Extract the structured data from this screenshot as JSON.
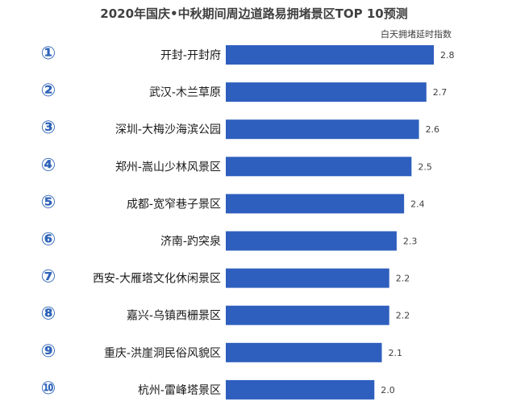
{
  "chart_data": {
    "type": "bar",
    "orientation": "horizontal",
    "title": "2020年国庆•中秋期间周边道路易拥堵景区TOP 10预测",
    "subtitle": "白天拥堵延时指数",
    "ranks": [
      "①",
      "②",
      "③",
      "④",
      "⑤",
      "⑥",
      "⑦",
      "⑧",
      "⑨",
      "⑩"
    ],
    "categories": [
      "开封-开封府",
      "武汉-木兰草原",
      "深圳-大梅沙海滨公园",
      "郑州-嵩山少林风景区",
      "成都-宽窄巷子景区",
      "济南-趵突泉",
      "西安-大雁塔文化休闲景区",
      "嘉兴-乌镇西栅景区",
      "重庆-洪崖洞民俗风貌区",
      "杭州-雷峰塔景区"
    ],
    "values": [
      2.8,
      2.7,
      2.6,
      2.5,
      2.4,
      2.3,
      2.2,
      2.2,
      2.1,
      2.0
    ],
    "value_labels": [
      "2.8",
      "2.7",
      "2.6",
      "2.5",
      "2.4",
      "2.3",
      "2.2",
      "2.2",
      "2.1",
      "2.0"
    ],
    "bar_color": "#2e5fbe",
    "rank_color": "#2e63b8"
  }
}
